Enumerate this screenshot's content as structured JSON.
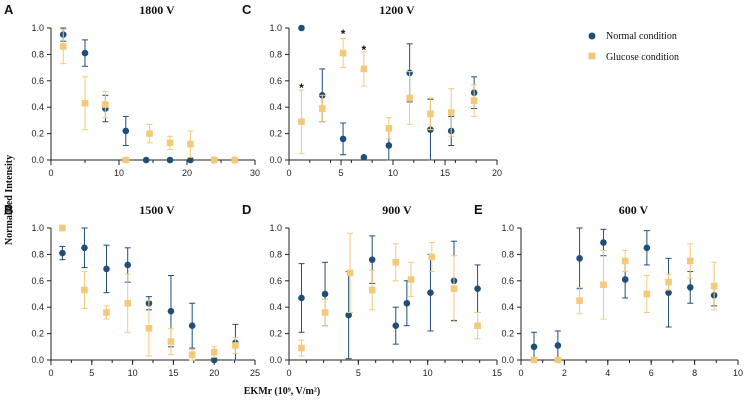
{
  "colors": {
    "normal": "#1f4e79",
    "glucose": "#f5c97a",
    "axis": "#222222"
  },
  "legend": {
    "normal_label": "Normal condition",
    "glucose_label": "Glucose condition"
  },
  "chart_data": [
    {
      "panel": "A",
      "title": "1800 V",
      "type": "scatter",
      "xlim": [
        0,
        30
      ],
      "xticks": [
        0,
        10,
        20,
        30
      ],
      "xminor": 5,
      "ylim": [
        0,
        1.0
      ],
      "yticks": [
        0.0,
        0.2,
        0.4,
        0.6,
        0.8,
        1.0
      ],
      "series": [
        {
          "name": "Normal condition",
          "x": [
            1.8,
            5,
            8,
            11,
            14,
            17.5,
            20.5,
            24,
            27
          ],
          "y": [
            0.95,
            0.81,
            0.39,
            0.22,
            0.0,
            0.0,
            0.0,
            0.0,
            0.0
          ],
          "err": [
            0.05,
            0.1,
            0.1,
            0.11,
            0,
            0,
            0,
            0,
            0
          ]
        },
        {
          "name": "Glucose condition",
          "x": [
            1.8,
            5,
            8,
            11,
            14.5,
            17.5,
            20.5,
            24,
            27
          ],
          "y": [
            0.86,
            0.43,
            0.42,
            0.0,
            0.2,
            0.13,
            0.12,
            0.0,
            0.0
          ],
          "err": [
            0.13,
            0.2,
            0.1,
            0,
            0.07,
            0.05,
            0.1,
            0,
            0
          ]
        }
      ]
    },
    {
      "panel": "C",
      "title": "1200 V",
      "type": "scatter",
      "xlim": [
        0,
        20
      ],
      "xticks": [
        0,
        5,
        10,
        15,
        20
      ],
      "xminor": 2,
      "ylim": [
        0,
        1.0
      ],
      "yticks": [
        0.0,
        0.2,
        0.4,
        0.6,
        0.8,
        1.0
      ],
      "annotations": [
        {
          "text": "*",
          "x": 1.2,
          "y": 0.56
        },
        {
          "text": "*",
          "x": 5.2,
          "y": 0.97
        },
        {
          "text": "*",
          "x": 7.2,
          "y": 0.85
        }
      ],
      "series": [
        {
          "name": "Normal condition",
          "x": [
            1.2,
            3.2,
            5.2,
            7.2,
            9.6,
            11.6,
            13.6,
            15.6,
            17.8
          ],
          "y": [
            1.0,
            0.49,
            0.16,
            0.02,
            0.11,
            0.66,
            0.23,
            0.22,
            0.51
          ],
          "err": [
            0,
            0.2,
            0.12,
            0,
            0.11,
            0.22,
            0.23,
            0.11,
            0.12
          ]
        },
        {
          "name": "Glucose condition",
          "x": [
            1.2,
            3.2,
            5.2,
            7.2,
            9.6,
            11.6,
            13.6,
            15.6,
            17.8
          ],
          "y": [
            0.29,
            0.39,
            0.81,
            0.69,
            0.24,
            0.47,
            0.35,
            0.36,
            0.45
          ],
          "err": [
            0.24,
            0.1,
            0.11,
            0.13,
            0.08,
            0.2,
            0.12,
            0.18,
            0.12
          ]
        }
      ]
    },
    {
      "panel": "B",
      "title": "1500 V",
      "type": "scatter",
      "xlim": [
        0,
        25
      ],
      "xticks": [
        0,
        5,
        10,
        15,
        20,
        25
      ],
      "xminor": 2.5,
      "ylim": [
        0,
        1.0
      ],
      "yticks": [
        0.0,
        0.2,
        0.4,
        0.6,
        0.8,
        1.0
      ],
      "series": [
        {
          "name": "Normal condition",
          "x": [
            1.4,
            4.1,
            6.8,
            9.4,
            12,
            14.7,
            17.3,
            20,
            22.6
          ],
          "y": [
            0.81,
            0.85,
            0.69,
            0.72,
            0.43,
            0.37,
            0.26,
            0.0,
            0.13
          ],
          "err": [
            0.05,
            0.15,
            0.18,
            0.13,
            0.05,
            0.27,
            0.17,
            0,
            0.14
          ]
        },
        {
          "name": "Glucose condition",
          "x": [
            1.4,
            4.1,
            6.8,
            9.4,
            12,
            14.7,
            17.3,
            20,
            22.6
          ],
          "y": [
            1.0,
            0.53,
            0.36,
            0.43,
            0.24,
            0.14,
            0.04,
            0.06,
            0.11
          ],
          "err": [
            0,
            0.14,
            0.05,
            0.22,
            0.21,
            0.1,
            0.04,
            0.04,
            0.06
          ]
        }
      ]
    },
    {
      "panel": "D",
      "title": "900 V",
      "type": "scatter",
      "xlim": [
        0,
        15
      ],
      "xticks": [
        0,
        5,
        10,
        15
      ],
      "xminor": 1.25,
      "ylim": [
        0,
        1.0
      ],
      "yticks": [
        0.0,
        0.2,
        0.4,
        0.6,
        0.8,
        1.0
      ],
      "series": [
        {
          "name": "Normal condition",
          "x": [
            0.9,
            2.6,
            4.3,
            6.0,
            7.7,
            8.5,
            10.2,
            11.9,
            13.6
          ],
          "y": [
            0.47,
            0.5,
            0.34,
            0.76,
            0.26,
            0.43,
            0.51,
            0.6,
            0.54
          ],
          "err": [
            0.26,
            0.24,
            0.33,
            0.18,
            0.14,
            0.17,
            0.29,
            0.3,
            0.18
          ]
        },
        {
          "name": "Glucose condition",
          "x": [
            0.9,
            2.6,
            4.4,
            6.0,
            7.7,
            8.8,
            10.3,
            11.9,
            13.6
          ],
          "y": [
            0.09,
            0.36,
            0.66,
            0.53,
            0.74,
            0.61,
            0.78,
            0.54,
            0.26
          ],
          "err": [
            0.06,
            0.1,
            0.3,
            0.15,
            0.14,
            0.13,
            0.11,
            0.25,
            0.1
          ]
        }
      ]
    },
    {
      "panel": "E",
      "title": "600 V",
      "type": "scatter",
      "xlim": [
        0,
        10
      ],
      "xticks": [
        0,
        2,
        4,
        6,
        8,
        10
      ],
      "xminor": 1,
      "ylim": [
        0,
        1.0
      ],
      "yticks": [
        0.0,
        0.2,
        0.4,
        0.6,
        0.8,
        1.0
      ],
      "series": [
        {
          "name": "Normal condition",
          "x": [
            0.6,
            1.7,
            2.7,
            3.8,
            4.8,
            5.8,
            6.8,
            7.8,
            8.9
          ],
          "y": [
            0.1,
            0.11,
            0.77,
            0.89,
            0.61,
            0.85,
            0.51,
            0.55,
            0.49
          ],
          "err": [
            0.11,
            0.11,
            0.23,
            0.1,
            0.14,
            0.13,
            0.26,
            0.12,
            0.08
          ]
        },
        {
          "name": "Glucose condition",
          "x": [
            0.6,
            1.7,
            2.7,
            3.8,
            4.8,
            5.8,
            6.8,
            7.8,
            8.9
          ],
          "y": [
            0.0,
            0.0,
            0.45,
            0.57,
            0.75,
            0.5,
            0.59,
            0.75,
            0.56
          ],
          "err": [
            0,
            0,
            0.1,
            0.26,
            0.08,
            0.14,
            0.06,
            0.13,
            0.18
          ]
        }
      ]
    }
  ],
  "axis_labels": {
    "x": "EKMr (10⁹, V/m²)",
    "y": "Normalized Intensity"
  }
}
